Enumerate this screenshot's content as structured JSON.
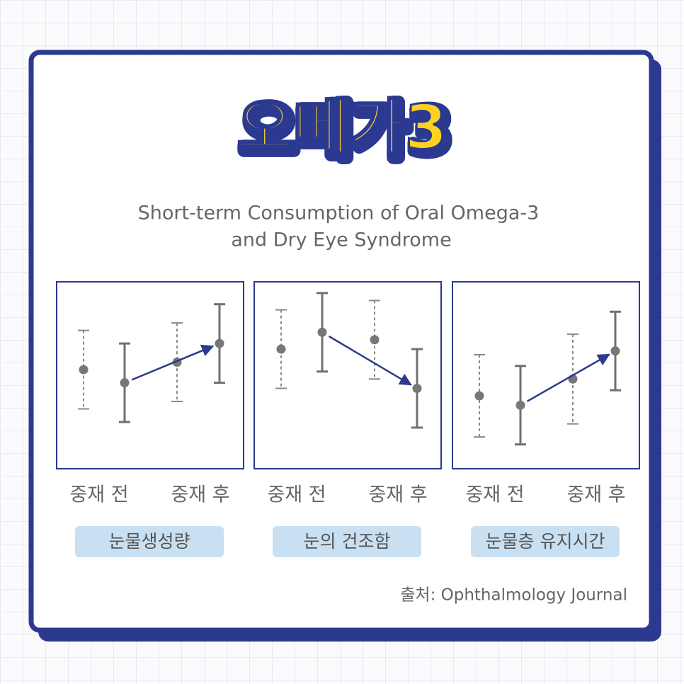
{
  "title": "오메가3",
  "subtitle": [
    "Short-term Consumption of Oral Omega-3",
    "and Dry Eye Syndrome"
  ],
  "source": "출처: Ophthalmology Journal",
  "chart_data": [
    {
      "type": "errorbar",
      "title": "눈물생성량",
      "categories": [
        "중재 전",
        "중재 후"
      ],
      "ylim": [
        0,
        100
      ],
      "arrow_color": "#2e3a8c",
      "series": [
        {
          "style": "dashed",
          "color": "#888888",
          "values": [
            53,
            57
          ],
          "errors": [
            21,
            21
          ]
        },
        {
          "style": "solid",
          "color": "#707070",
          "values": [
            46,
            67
          ],
          "errors": [
            21,
            21
          ]
        }
      ]
    },
    {
      "type": "errorbar",
      "title": "눈의 건조함",
      "categories": [
        "중재 전",
        "중재 후"
      ],
      "ylim": [
        0,
        100
      ],
      "arrow_color": "#2e3a8c",
      "series": [
        {
          "style": "dashed",
          "color": "#888888",
          "values": [
            64,
            69
          ],
          "errors": [
            21,
            21
          ]
        },
        {
          "style": "solid",
          "color": "#707070",
          "values": [
            73,
            43
          ],
          "errors": [
            21,
            21
          ]
        }
      ]
    },
    {
      "type": "errorbar",
      "title": "눈물층 유지시간",
      "categories": [
        "중재 전",
        "중재 후"
      ],
      "ylim": [
        0,
        100
      ],
      "arrow_color": "#2e3a8c",
      "series": [
        {
          "style": "dashed",
          "color": "#888888",
          "values": [
            39,
            48
          ],
          "errors": [
            22,
            24
          ]
        },
        {
          "style": "solid",
          "color": "#707070",
          "values": [
            34,
            63
          ],
          "errors": [
            21,
            21
          ]
        }
      ]
    }
  ]
}
